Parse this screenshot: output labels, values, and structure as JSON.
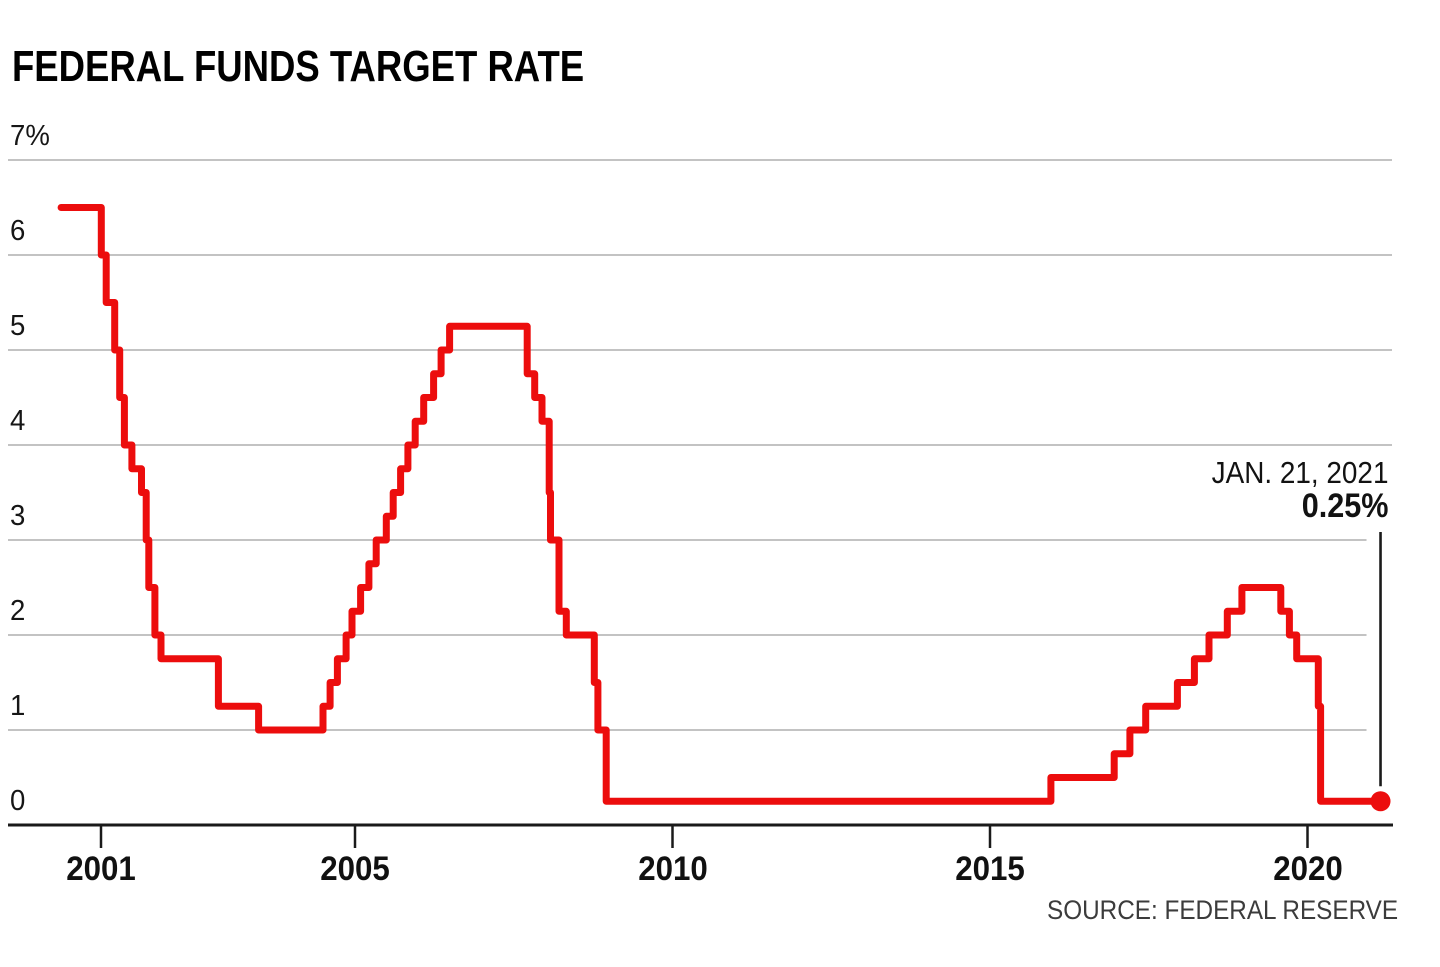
{
  "title": "FEDERAL FUNDS TARGET RATE",
  "source": "SOURCE: FEDERAL RESERVE",
  "annotation": {
    "date_label": "JAN. 21, 2021",
    "value_label": "0.25%"
  },
  "colors": {
    "line": "#ec0d0d",
    "grid": "#c3c3c3",
    "axis": "#1a1a1a",
    "callout": "#1a1a1a",
    "text": "#121212",
    "muted_text": "#3c3c3c"
  },
  "chart_data": {
    "type": "line",
    "line_style": "step-after",
    "title": "FEDERAL FUNDS TARGET RATE",
    "xlabel": "",
    "ylabel": "",
    "unit": "%",
    "ylim": [
      0,
      7
    ],
    "grid": "horizontal",
    "legend": "none",
    "y_ticks": [
      {
        "value": 7,
        "label": "7%"
      },
      {
        "value": 6,
        "label": "6"
      },
      {
        "value": 5,
        "label": "5"
      },
      {
        "value": 4,
        "label": "4"
      },
      {
        "value": 3,
        "label": "3"
      },
      {
        "value": 2,
        "label": "2"
      },
      {
        "value": 1,
        "label": "1"
      },
      {
        "value": 0,
        "label": "0"
      }
    ],
    "x_ticks": [
      {
        "year": 2001,
        "label": "2001"
      },
      {
        "year": 2005,
        "label": "2005"
      },
      {
        "year": 2010,
        "label": "2010"
      },
      {
        "year": 2015,
        "label": "2015"
      },
      {
        "year": 2020,
        "label": "2020"
      }
    ],
    "series": [
      {
        "name": "Federal funds target rate",
        "points": [
          {
            "date": "2000-05-16",
            "year": 2000.372,
            "value": 6.5
          },
          {
            "date": "2001-01-03",
            "year": 2001.005,
            "value": 6.0
          },
          {
            "date": "2001-01-31",
            "year": 2001.082,
            "value": 5.5
          },
          {
            "date": "2001-03-20",
            "year": 2001.215,
            "value": 5.0
          },
          {
            "date": "2001-04-18",
            "year": 2001.295,
            "value": 4.5
          },
          {
            "date": "2001-05-15",
            "year": 2001.369,
            "value": 4.0
          },
          {
            "date": "2001-06-27",
            "year": 2001.487,
            "value": 3.75
          },
          {
            "date": "2001-08-21",
            "year": 2001.638,
            "value": 3.5
          },
          {
            "date": "2001-09-17",
            "year": 2001.712,
            "value": 3.0
          },
          {
            "date": "2001-10-02",
            "year": 2001.753,
            "value": 2.5
          },
          {
            "date": "2001-11-06",
            "year": 2001.849,
            "value": 2.0
          },
          {
            "date": "2001-12-11",
            "year": 2001.945,
            "value": 1.75
          },
          {
            "date": "2002-11-06",
            "year": 2002.849,
            "value": 1.25
          },
          {
            "date": "2003-06-25",
            "year": 2003.482,
            "value": 1.0
          },
          {
            "date": "2004-06-30",
            "year": 2004.496,
            "value": 1.25
          },
          {
            "date": "2004-08-10",
            "year": 2004.608,
            "value": 1.5
          },
          {
            "date": "2004-09-21",
            "year": 2004.723,
            "value": 1.75
          },
          {
            "date": "2004-11-10",
            "year": 2004.86,
            "value": 2.0
          },
          {
            "date": "2004-12-14",
            "year": 2004.953,
            "value": 2.25
          },
          {
            "date": "2005-02-02",
            "year": 2005.088,
            "value": 2.5
          },
          {
            "date": "2005-03-22",
            "year": 2005.219,
            "value": 2.75
          },
          {
            "date": "2005-05-03",
            "year": 2005.334,
            "value": 3.0
          },
          {
            "date": "2005-06-30",
            "year": 2005.493,
            "value": 3.25
          },
          {
            "date": "2005-08-09",
            "year": 2005.602,
            "value": 3.5
          },
          {
            "date": "2005-09-20",
            "year": 2005.718,
            "value": 3.75
          },
          {
            "date": "2005-11-01",
            "year": 2005.833,
            "value": 4.0
          },
          {
            "date": "2005-12-13",
            "year": 2005.948,
            "value": 4.25
          },
          {
            "date": "2006-01-31",
            "year": 2006.082,
            "value": 4.5
          },
          {
            "date": "2006-03-28",
            "year": 2006.238,
            "value": 4.75
          },
          {
            "date": "2006-05-10",
            "year": 2006.356,
            "value": 5.0
          },
          {
            "date": "2006-06-29",
            "year": 2006.49,
            "value": 5.25
          },
          {
            "date": "2007-09-18",
            "year": 2007.712,
            "value": 4.75
          },
          {
            "date": "2007-10-31",
            "year": 2007.83,
            "value": 4.5
          },
          {
            "date": "2007-12-11",
            "year": 2007.945,
            "value": 4.25
          },
          {
            "date": "2008-01-22",
            "year": 2008.058,
            "value": 3.5
          },
          {
            "date": "2008-01-30",
            "year": 2008.079,
            "value": 3.0
          },
          {
            "date": "2008-03-18",
            "year": 2008.212,
            "value": 2.25
          },
          {
            "date": "2008-04-30",
            "year": 2008.328,
            "value": 2.0
          },
          {
            "date": "2008-10-08",
            "year": 2008.768,
            "value": 1.5
          },
          {
            "date": "2008-10-29",
            "year": 2008.825,
            "value": 1.0
          },
          {
            "date": "2008-12-16",
            "year": 2008.956,
            "value": 0.25
          },
          {
            "date": "2015-12-17",
            "year": 2015.959,
            "value": 0.5
          },
          {
            "date": "2016-12-15",
            "year": 2016.956,
            "value": 0.75
          },
          {
            "date": "2017-03-16",
            "year": 2017.203,
            "value": 1.0
          },
          {
            "date": "2017-06-15",
            "year": 2017.452,
            "value": 1.25
          },
          {
            "date": "2017-12-14",
            "year": 2017.951,
            "value": 1.5
          },
          {
            "date": "2018-03-22",
            "year": 2018.219,
            "value": 1.75
          },
          {
            "date": "2018-06-14",
            "year": 2018.449,
            "value": 2.0
          },
          {
            "date": "2018-09-27",
            "year": 2018.737,
            "value": 2.25
          },
          {
            "date": "2018-12-20",
            "year": 2018.967,
            "value": 2.5
          },
          {
            "date": "2019-08-01",
            "year": 2019.58,
            "value": 2.25
          },
          {
            "date": "2019-09-19",
            "year": 2019.715,
            "value": 2.0
          },
          {
            "date": "2019-10-31",
            "year": 2019.83,
            "value": 1.75
          },
          {
            "date": "2020-03-03",
            "year": 2020.17,
            "value": 1.25
          },
          {
            "date": "2020-03-16",
            "year": 2020.206,
            "value": 0.25
          }
        ]
      }
    ],
    "end_point": {
      "date": "2021-01-21",
      "year": 2021.15,
      "value": 0.25
    }
  }
}
